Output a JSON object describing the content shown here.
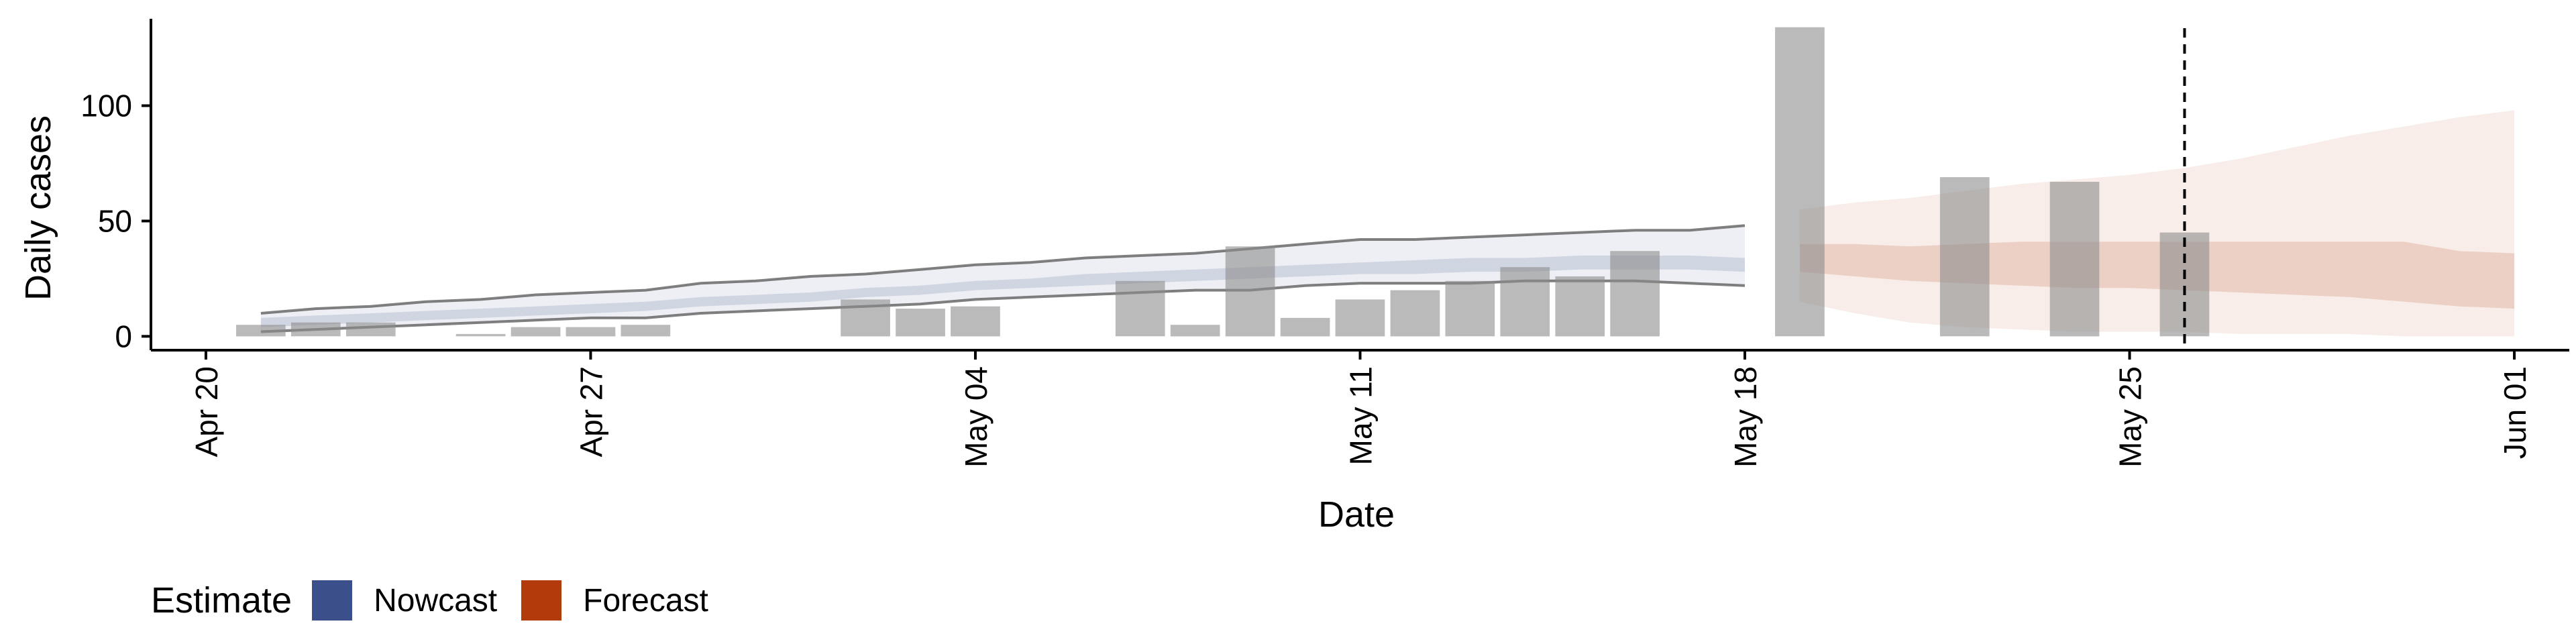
{
  "chart_data": {
    "type": "bar",
    "title": "",
    "xlabel": "Date",
    "ylabel": "Daily cases",
    "x_range": [
      "2020-04-19",
      "2020-06-02"
    ],
    "ylim": [
      -6,
      140
    ],
    "x_ticks": [
      {
        "date": "2020-04-20",
        "label": "Apr 20"
      },
      {
        "date": "2020-04-27",
        "label": "Apr 27"
      },
      {
        "date": "2020-05-04",
        "label": "May 04"
      },
      {
        "date": "2020-05-11",
        "label": "May 11"
      },
      {
        "date": "2020-05-18",
        "label": "May 18"
      },
      {
        "date": "2020-05-25",
        "label": "May 25"
      },
      {
        "date": "2020-06-01",
        "label": "Jun 01"
      }
    ],
    "y_ticks": [
      0,
      50,
      100
    ],
    "grid": false,
    "reference_line": {
      "date": "2020-05-26",
      "style": "dashed"
    },
    "observed_cases": [
      {
        "date": "2020-04-21",
        "value": 5
      },
      {
        "date": "2020-04-22",
        "value": 6
      },
      {
        "date": "2020-04-23",
        "value": 6
      },
      {
        "date": "2020-04-25",
        "value": 1
      },
      {
        "date": "2020-04-26",
        "value": 4
      },
      {
        "date": "2020-04-27",
        "value": 4
      },
      {
        "date": "2020-04-28",
        "value": 5
      },
      {
        "date": "2020-05-02",
        "value": 16
      },
      {
        "date": "2020-05-03",
        "value": 12
      },
      {
        "date": "2020-05-04",
        "value": 13
      },
      {
        "date": "2020-05-07",
        "value": 24
      },
      {
        "date": "2020-05-08",
        "value": 5
      },
      {
        "date": "2020-05-09",
        "value": 39
      },
      {
        "date": "2020-05-10",
        "value": 8
      },
      {
        "date": "2020-05-11",
        "value": 16
      },
      {
        "date": "2020-05-12",
        "value": 20
      },
      {
        "date": "2020-05-13",
        "value": 24
      },
      {
        "date": "2020-05-14",
        "value": 30
      },
      {
        "date": "2020-05-15",
        "value": 26
      },
      {
        "date": "2020-05-16",
        "value": 37
      },
      {
        "date": "2020-05-19",
        "value": 134
      },
      {
        "date": "2020-05-22",
        "value": 69
      },
      {
        "date": "2020-05-24",
        "value": 67
      },
      {
        "date": "2020-05-26",
        "value": 45
      }
    ],
    "series": [
      {
        "name": "Nowcast",
        "color": "#3b4f8a",
        "dates": [
          "2020-04-21",
          "2020-04-22",
          "2020-04-23",
          "2020-04-24",
          "2020-04-25",
          "2020-04-26",
          "2020-04-27",
          "2020-04-28",
          "2020-04-29",
          "2020-04-30",
          "2020-05-01",
          "2020-05-02",
          "2020-05-03",
          "2020-05-04",
          "2020-05-05",
          "2020-05-06",
          "2020-05-07",
          "2020-05-08",
          "2020-05-09",
          "2020-05-10",
          "2020-05-11",
          "2020-05-12",
          "2020-05-13",
          "2020-05-14",
          "2020-05-15",
          "2020-05-16",
          "2020-05-17",
          "2020-05-18"
        ],
        "outer_lower": [
          2,
          3,
          4,
          5,
          6,
          7,
          8,
          8,
          10,
          11,
          12,
          13,
          14,
          16,
          17,
          18,
          19,
          20,
          20,
          22,
          23,
          23,
          23,
          24,
          24,
          24,
          23,
          22
        ],
        "outer_upper": [
          10,
          12,
          13,
          15,
          16,
          18,
          19,
          20,
          23,
          24,
          26,
          27,
          29,
          31,
          32,
          34,
          35,
          36,
          38,
          40,
          42,
          42,
          43,
          44,
          45,
          46,
          46,
          48
        ],
        "inner_lower": [
          4,
          5,
          6,
          7,
          8,
          9,
          10,
          11,
          13,
          14,
          15,
          17,
          18,
          20,
          21,
          22,
          23,
          24,
          25,
          26,
          27,
          27,
          28,
          28,
          29,
          29,
          29,
          28
        ],
        "inner_upper": [
          8,
          9,
          10,
          11,
          12,
          13,
          14,
          15,
          17,
          18,
          19,
          21,
          22,
          24,
          25,
          27,
          28,
          29,
          30,
          31,
          32,
          33,
          34,
          34,
          35,
          35,
          35,
          34
        ]
      },
      {
        "name": "Forecast",
        "color": "#b33a0b",
        "dates": [
          "2020-05-19",
          "2020-05-20",
          "2020-05-21",
          "2020-05-22",
          "2020-05-23",
          "2020-05-24",
          "2020-05-25",
          "2020-05-26",
          "2020-05-27",
          "2020-05-28",
          "2020-05-29",
          "2020-05-30",
          "2020-05-31",
          "2020-06-01"
        ],
        "outer_lower": [
          15,
          10,
          6,
          4,
          3,
          2,
          2,
          2,
          1,
          1,
          1,
          0,
          0,
          0
        ],
        "outer_upper": [
          55,
          58,
          60,
          63,
          66,
          68,
          70,
          73,
          77,
          82,
          87,
          91,
          95,
          98
        ],
        "inner_lower": [
          28,
          26,
          24,
          23,
          22,
          21,
          21,
          20,
          19,
          18,
          17,
          15,
          13,
          12
        ],
        "inner_upper": [
          40,
          40,
          39,
          40,
          41,
          41,
          41,
          41,
          41,
          41,
          41,
          41,
          37,
          36
        ]
      }
    ],
    "legend": {
      "title": "Estimate",
      "position": "bottom-left",
      "items": [
        {
          "label": "Nowcast",
          "color": "#3b4f8a"
        },
        {
          "label": "Forecast",
          "color": "#b33a0b"
        }
      ]
    }
  }
}
